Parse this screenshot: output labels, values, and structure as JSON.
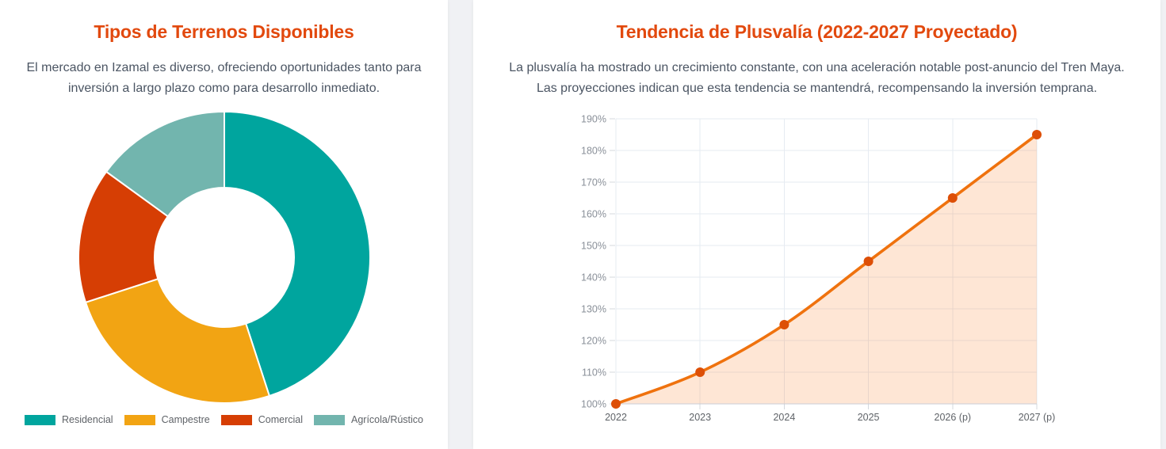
{
  "theme": {
    "page_background": "#f0f1f4",
    "card_background": "#ffffff",
    "title_color": "#e2490e",
    "subtitle_color": "#4b5563",
    "axis_label_color_y": "#8a9099",
    "axis_label_color_x": "#5f6368",
    "gridline_color": "#e6ebf2",
    "axis_line_color": "#c9ced6",
    "tick_color": "#d4d8de",
    "legend_label_color": "#5f6368"
  },
  "chart_data": [
    {
      "type": "pie",
      "variant": "doughnut",
      "title": "Tipos de Terrenos Disponibles",
      "subtitle": "El mercado en Izamal es diverso, ofreciendo oportunidades tanto para inversión a largo plazo como para desarrollo inmediato.",
      "labels": [
        "Residencial",
        "Campestre",
        "Comercial",
        "Agrícola/Rústico"
      ],
      "values": [
        45,
        25,
        15,
        15
      ],
      "unit": "%",
      "colors": [
        "#00a59e",
        "#f2a413",
        "#d63e04",
        "#72b5ae"
      ],
      "segment_border_color": "#ffffff",
      "cutout_ratio": 0.48,
      "start_angle_deg": 0,
      "direction": "clockwise",
      "legend_position": "bottom"
    },
    {
      "type": "line",
      "title": "Tendencia de Plusvalía (2022-2027 Proyectado)",
      "subtitle": "La plusvalía ha mostrado un crecimiento constante, con una aceleración notable post-anuncio del Tren Maya. Las proyecciones indican que esta tendencia se mantendrá, recompensando la inversión temprana.",
      "x": [
        "2022",
        "2023",
        "2024",
        "2025",
        "2026 (p)",
        "2027 (p)"
      ],
      "series": [
        {
          "name": "Plusvalía",
          "values": [
            100,
            110,
            125,
            145,
            165,
            185
          ]
        }
      ],
      "ylim": [
        100,
        190
      ],
      "ytick_step": 10,
      "ytick_labels": [
        "100%",
        "110%",
        "120%",
        "130%",
        "140%",
        "150%",
        "160%",
        "170%",
        "180%",
        "190%"
      ],
      "grid": true,
      "smooth": true,
      "line_color": "#ef720e",
      "point_color": "#dd4f07",
      "area_fill": "#f97316",
      "area_opacity": 0.18,
      "legend_position": "none"
    }
  ]
}
